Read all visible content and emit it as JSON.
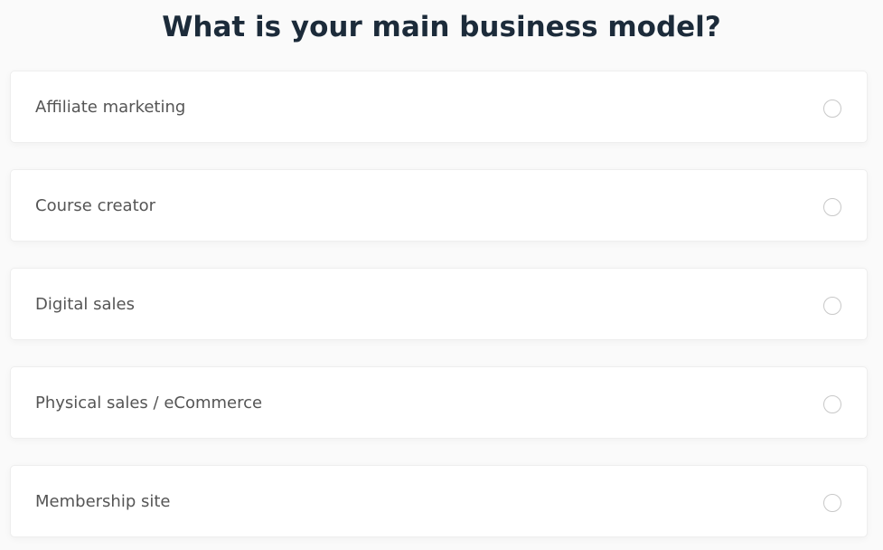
{
  "title": "What is your main business model?",
  "options": [
    {
      "label": "Affiliate marketing",
      "selected": false
    },
    {
      "label": "Course creator",
      "selected": false
    },
    {
      "label": "Digital sales",
      "selected": false
    },
    {
      "label": "Physical sales / eCommerce",
      "selected": false
    },
    {
      "label": "Membership site",
      "selected": false
    }
  ]
}
